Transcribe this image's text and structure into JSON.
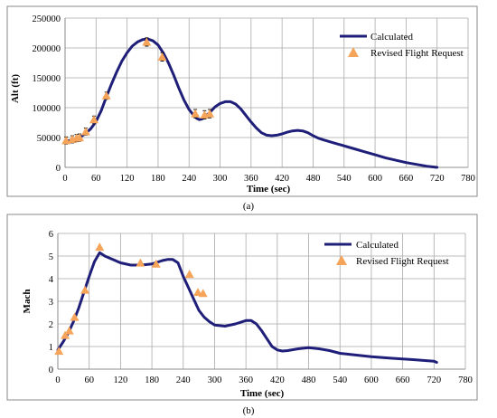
{
  "chart_data": [
    {
      "type": "line",
      "caption": "(a)",
      "xlabel": "Time (sec)",
      "ylabel": "Alt (ft)",
      "xlim": [
        0,
        780
      ],
      "ylim": [
        0,
        250000
      ],
      "xticks": [
        0,
        60,
        120,
        180,
        240,
        300,
        360,
        420,
        480,
        540,
        600,
        660,
        720,
        780
      ],
      "yticks": [
        0,
        50000,
        100000,
        150000,
        200000,
        250000
      ],
      "ytick_labels": [
        "0",
        "50000",
        "100000",
        "150000",
        "200000",
        "250000"
      ],
      "grid": true,
      "legend_position": "top-right",
      "series": [
        {
          "name": "Calculated",
          "type": "line",
          "color": "#1f1f7a",
          "x": [
            0,
            10,
            20,
            30,
            40,
            50,
            60,
            70,
            80,
            90,
            100,
            110,
            120,
            130,
            140,
            150,
            160,
            170,
            180,
            190,
            200,
            210,
            220,
            230,
            240,
            250,
            255,
            260,
            265,
            270,
            280,
            290,
            300,
            310,
            320,
            330,
            340,
            350,
            360,
            370,
            380,
            390,
            400,
            410,
            420,
            430,
            440,
            450,
            460,
            470,
            480,
            490,
            500,
            520,
            540,
            560,
            580,
            600,
            620,
            640,
            660,
            680,
            700,
            720
          ],
          "y": [
            44000,
            45000,
            47000,
            51000,
            57000,
            65000,
            77000,
            95000,
            118000,
            140000,
            160000,
            178000,
            192000,
            203000,
            210000,
            214000,
            215000,
            212000,
            205000,
            192000,
            175000,
            155000,
            133000,
            113000,
            97000,
            86000,
            82000,
            80000,
            81000,
            84000,
            92000,
            101000,
            107000,
            110000,
            110000,
            106000,
            98000,
            87000,
            76000,
            66000,
            58000,
            54000,
            53000,
            54000,
            56000,
            59000,
            61000,
            62000,
            61000,
            58000,
            53000,
            49000,
            46000,
            41000,
            36000,
            31000,
            26000,
            21000,
            16000,
            12000,
            8000,
            5000,
            2000,
            0
          ]
        },
        {
          "name": "Revised Flight Request",
          "type": "scatter",
          "color": "#f5a45a",
          "x": [
            2,
            14,
            22,
            28,
            40,
            56,
            80,
            158,
            188,
            252,
            270,
            280
          ],
          "y": [
            45000,
            47000,
            49000,
            50000,
            60000,
            80000,
            120000,
            210000,
            185000,
            90000,
            88000,
            90000
          ],
          "error": [
            6000,
            6000,
            6000,
            6000,
            6000,
            6000,
            6000,
            7000,
            7000,
            7000,
            7000,
            7000
          ]
        }
      ]
    },
    {
      "type": "line",
      "caption": "(b)",
      "xlabel": "Time (sec)",
      "ylabel": "Mach",
      "xlim": [
        0,
        780
      ],
      "ylim": [
        0,
        6
      ],
      "xticks": [
        0,
        60,
        120,
        180,
        240,
        300,
        360,
        420,
        480,
        540,
        600,
        660,
        720,
        780
      ],
      "yticks": [
        0,
        1,
        2,
        3,
        4,
        5,
        6
      ],
      "ytick_labels": [
        "0",
        "1",
        "2",
        "3",
        "4",
        "5",
        "6"
      ],
      "grid": true,
      "legend_position": "top-right",
      "series": [
        {
          "name": "Calculated",
          "type": "line",
          "color": "#1f1f7a",
          "x": [
            0,
            10,
            20,
            30,
            40,
            50,
            60,
            70,
            80,
            90,
            100,
            120,
            140,
            160,
            180,
            200,
            210,
            220,
            230,
            235,
            240,
            250,
            260,
            270,
            280,
            290,
            300,
            320,
            340,
            360,
            370,
            380,
            390,
            400,
            410,
            420,
            430,
            440,
            460,
            480,
            500,
            520,
            540,
            560,
            600,
            640,
            680,
            720,
            725
          ],
          "y": [
            0.85,
            1.2,
            1.6,
            2.1,
            2.7,
            3.4,
            4.1,
            4.75,
            5.15,
            5.0,
            4.9,
            4.7,
            4.6,
            4.6,
            4.65,
            4.8,
            4.85,
            4.85,
            4.7,
            4.4,
            4.1,
            3.6,
            3.1,
            2.6,
            2.3,
            2.1,
            1.95,
            1.9,
            2.0,
            2.15,
            2.15,
            2.0,
            1.7,
            1.35,
            1.0,
            0.85,
            0.8,
            0.82,
            0.9,
            0.95,
            0.9,
            0.82,
            0.7,
            0.65,
            0.55,
            0.48,
            0.42,
            0.35,
            0.3
          ]
        },
        {
          "name": "Revised Flight Request",
          "type": "scatter",
          "color": "#f5a45a",
          "x": [
            2,
            14,
            22,
            32,
            52,
            80,
            158,
            188,
            252,
            268,
            278
          ],
          "y": [
            0.8,
            1.5,
            1.7,
            2.3,
            3.5,
            5.4,
            4.7,
            4.65,
            4.2,
            3.4,
            3.35
          ]
        }
      ]
    }
  ]
}
